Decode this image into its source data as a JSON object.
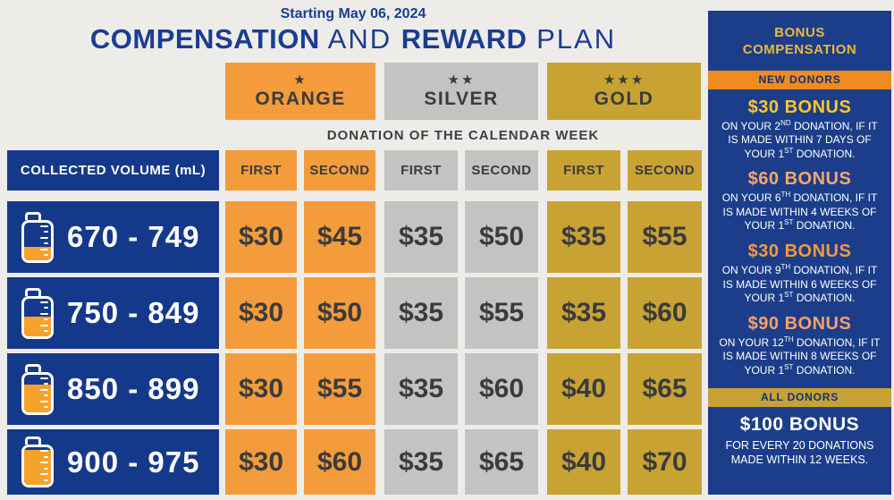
{
  "header": {
    "date_line": "Starting May 06, 2024",
    "title_part1": "COMPENSATION",
    "title_part2": " AND ",
    "title_part3": "REWARD",
    "title_part4": " PLAN"
  },
  "tiers": [
    {
      "name": "ORANGE",
      "stars": "★",
      "color": "#F49C3C"
    },
    {
      "name": "SILVER",
      "stars": "★★",
      "color": "#C4C3C1"
    },
    {
      "name": "GOLD",
      "stars": "★★★",
      "color": "#C8A334"
    }
  ],
  "calendar_week_label": "DONATION OF THE CALENDAR WEEK",
  "table": {
    "volume_header": "COLLECTED VOLUME (mL)",
    "subheaders": [
      "FIRST",
      "SECOND",
      "FIRST",
      "SECOND",
      "FIRST",
      "SECOND"
    ],
    "rows": [
      {
        "range": "670 - 749",
        "fill_style": "height:35%",
        "values": [
          "$30",
          "$45",
          "$35",
          "$50",
          "$35",
          "$55"
        ]
      },
      {
        "range": "750 - 849",
        "fill_style": "height:52%",
        "values": [
          "$30",
          "$50",
          "$35",
          "$55",
          "$35",
          "$60"
        ]
      },
      {
        "range": "850 - 899",
        "fill_style": "height:72%",
        "values": [
          "$30",
          "$55",
          "$35",
          "$60",
          "$40",
          "$65"
        ]
      },
      {
        "range": "900 - 975",
        "fill_style": "height:92%",
        "values": [
          "$30",
          "$60",
          "$35",
          "$65",
          "$40",
          "$70"
        ]
      }
    ]
  },
  "sidebar": {
    "title": "BONUS COMPENSATION",
    "new_donors_label": "NEW DONORS",
    "bonuses": [
      {
        "amount": "$30 BONUS",
        "amount_style": "color:#FFC62E",
        "p1": "ON YOUR 2",
        "s1": "ND",
        "p2": " DONATION, IF IT IS MADE WITHIN 7 DAYS OF YOUR 1",
        "s2": "ST",
        "p3": " DONATION."
      },
      {
        "amount": "$60 BONUS",
        "amount_style": "color:#F8A76B",
        "p1": "ON YOUR 6",
        "s1": "TH",
        "p2": " DONATION, IF IT IS MADE WITHIN 4 WEEKS OF YOUR 1",
        "s2": "ST",
        "p3": " DONATION."
      },
      {
        "amount": "$30 BONUS",
        "amount_style": "color:#F5993F",
        "p1": "ON YOUR 9",
        "s1": "TH",
        "p2": " DONATION, IF IT IS MADE WITHIN 6 WEEKS OF YOUR 1",
        "s2": "ST",
        "p3": " DONATION."
      },
      {
        "amount": "$90 BONUS",
        "amount_style": "color:#F8A06D",
        "p1": "ON YOUR 12",
        "s1": "TH",
        "p2": " DONATION, IF IT IS MADE WITHIN 8 WEEKS OF YOUR 1",
        "s2": "ST",
        "p3": " DONATION."
      }
    ],
    "all_donors_label": "ALL DONORS",
    "all_donors_amount": "$100 BONUS",
    "all_donors_desc": "FOR EVERY 20 DONATIONS MADE WITHIN 12 WEEKS."
  },
  "colors": {
    "navy": "#15398A",
    "title_navy": "#1B3D91",
    "orange": "#F49C3C",
    "silver": "#C4C3C1",
    "gold": "#C8A334",
    "background": "#EDECE9",
    "cell_text": "#3B3B3B",
    "sidebar_navy": "#1C3E8A",
    "sidebar_gold_title": "#EBBA3C",
    "new_donors_bar": "#EE8B21",
    "all_donors_bar": "#C7A136",
    "liquid_orange": "#F5A22B"
  }
}
